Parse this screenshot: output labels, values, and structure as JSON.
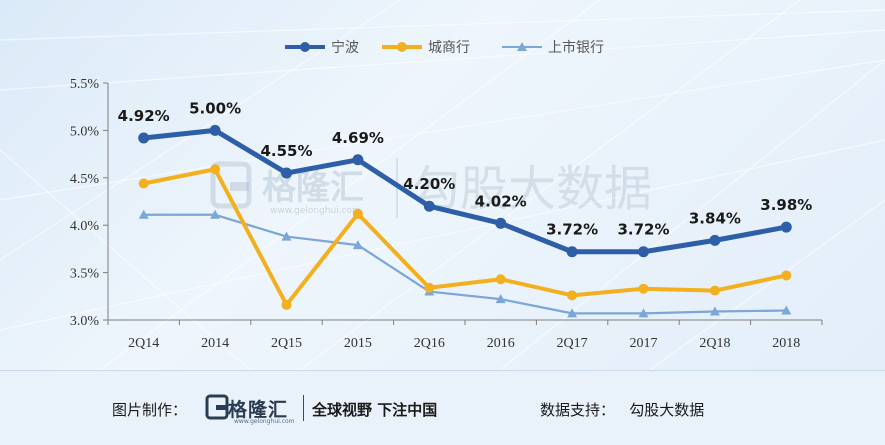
{
  "chart_data": {
    "type": "line",
    "categories": [
      "2Q14",
      "2014",
      "2Q15",
      "2015",
      "2Q16",
      "2016",
      "2Q17",
      "2017",
      "2Q18",
      "2018"
    ],
    "series": [
      {
        "name": "宁波",
        "color": "#2e5ea8",
        "values": [
          4.92,
          5.0,
          4.55,
          4.69,
          4.2,
          4.02,
          3.72,
          3.72,
          3.84,
          3.98
        ],
        "labels": [
          "4.92%",
          "5.00%",
          "4.55%",
          "4.69%",
          "4.20%",
          "4.02%",
          "3.72%",
          "3.72%",
          "3.84%",
          "3.98%"
        ]
      },
      {
        "name": "城商行",
        "color": "#f2b01e",
        "values": [
          4.44,
          4.59,
          3.16,
          4.12,
          3.34,
          3.43,
          3.26,
          3.33,
          3.31,
          3.47
        ]
      },
      {
        "name": "上市银行",
        "color": "#7aa6d8",
        "values": [
          4.11,
          4.11,
          3.88,
          3.79,
          3.3,
          3.22,
          3.07,
          3.07,
          3.09,
          3.1
        ]
      }
    ],
    "yticks": [
      "3.0%",
      "3.5%",
      "4.0%",
      "4.5%",
      "5.0%",
      "5.5%"
    ],
    "ylim": [
      3.0,
      5.5
    ],
    "legend": "top-center",
    "grid": false
  },
  "watermark": {
    "logo_text": "格隆汇",
    "url": "www.gelonghui.com",
    "data_text": "勾股大数据"
  },
  "footer": {
    "made_label": "图片制作：",
    "logo_text": "格隆汇",
    "logo_url": "www.gelonghui.com",
    "slogan": "全球视野 下注中国",
    "support": "数据支持：   勾股大数据"
  }
}
